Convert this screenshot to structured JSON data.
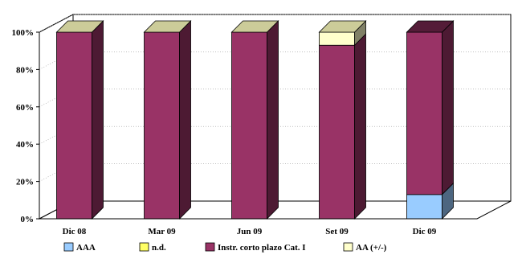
{
  "chart_data": {
    "type": "bar",
    "stacked": true,
    "three_d": true,
    "percent_stacked": true,
    "categories": [
      "Dic 08",
      "Mar 09",
      "Jun 09",
      "Set 09",
      "Dic 09"
    ],
    "series": [
      {
        "name": "AAA",
        "values": [
          0,
          0,
          0,
          0,
          13
        ],
        "color": "#99ccff"
      },
      {
        "name": "n.d.",
        "values": [
          0,
          0,
          0,
          0,
          0
        ],
        "color": "#ffff66"
      },
      {
        "name": "Instr. corto plazo Cat. I",
        "values": [
          100,
          100,
          100,
          93,
          87
        ],
        "color": "#993366"
      },
      {
        "name": "AA (+/-)",
        "values": [
          0,
          0,
          0,
          7,
          0
        ],
        "color": "#ffffcc"
      }
    ],
    "yticks": [
      "0%",
      "20%",
      "40%",
      "60%",
      "80%",
      "100%"
    ],
    "ylim": [
      0,
      100
    ],
    "grid": true,
    "legend_position": "bottom"
  }
}
